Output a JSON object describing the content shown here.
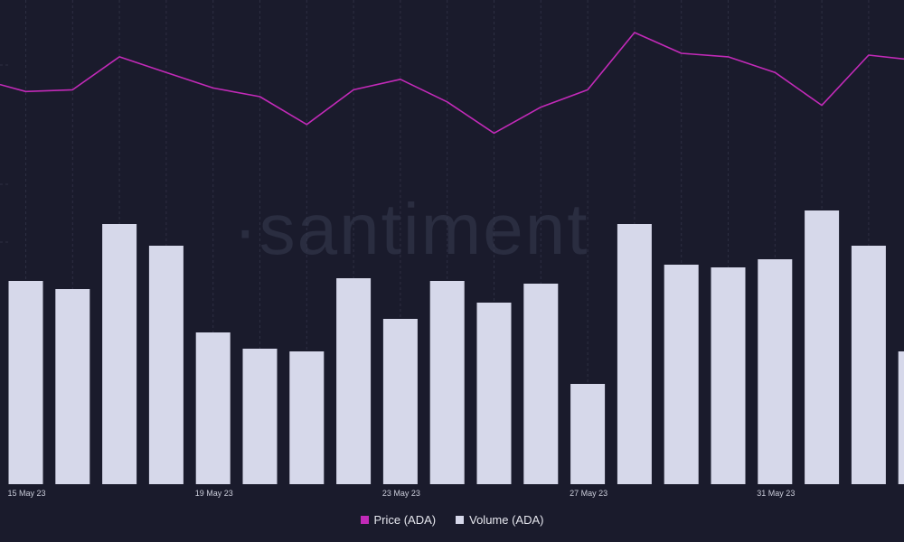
{
  "watermark": "·santiment",
  "colors": {
    "background": "#1a1b2c",
    "grid": "#3a3d52",
    "price": "#c22ab8",
    "volume": "#d6d8ea",
    "tick_text": "#c9cbd8"
  },
  "legend": {
    "position": "bottom-center",
    "items": [
      {
        "label": "Price (ADA)",
        "color": "#c22ab8"
      },
      {
        "label": "Volume (ADA)",
        "color": "#d6d8ea"
      }
    ]
  },
  "chart_data": {
    "type": "bar",
    "title": "",
    "xlabel": "",
    "ylabel": "",
    "grid": true,
    "legend_placement": "bottom-center",
    "x_tick_labels": [
      {
        "index": 0.5,
        "label": "15 May 23"
      },
      {
        "index": 4.5,
        "label": "19 May 23"
      },
      {
        "index": 8.5,
        "label": "23 May 23"
      },
      {
        "index": 12.5,
        "label": "27 May 23"
      },
      {
        "index": 16.5,
        "label": "31 May 23"
      }
    ],
    "series": [
      {
        "name": "Volume (ADA)",
        "type": "bar",
        "ylim": [
          0,
          100
        ],
        "values": [
          75,
          72,
          96,
          88,
          56,
          50,
          49,
          76,
          61,
          75,
          67,
          74,
          37,
          96,
          81,
          80,
          83,
          101,
          88,
          49
        ]
      },
      {
        "name": "Price (ADA)",
        "type": "line",
        "ylim": [
          0,
          100
        ],
        "values": [
          70,
          66,
          67,
          86,
          77,
          68,
          63,
          47,
          67,
          73,
          60,
          42,
          57,
          67,
          100,
          88,
          86,
          77,
          58,
          87,
          84
        ]
      }
    ]
  }
}
